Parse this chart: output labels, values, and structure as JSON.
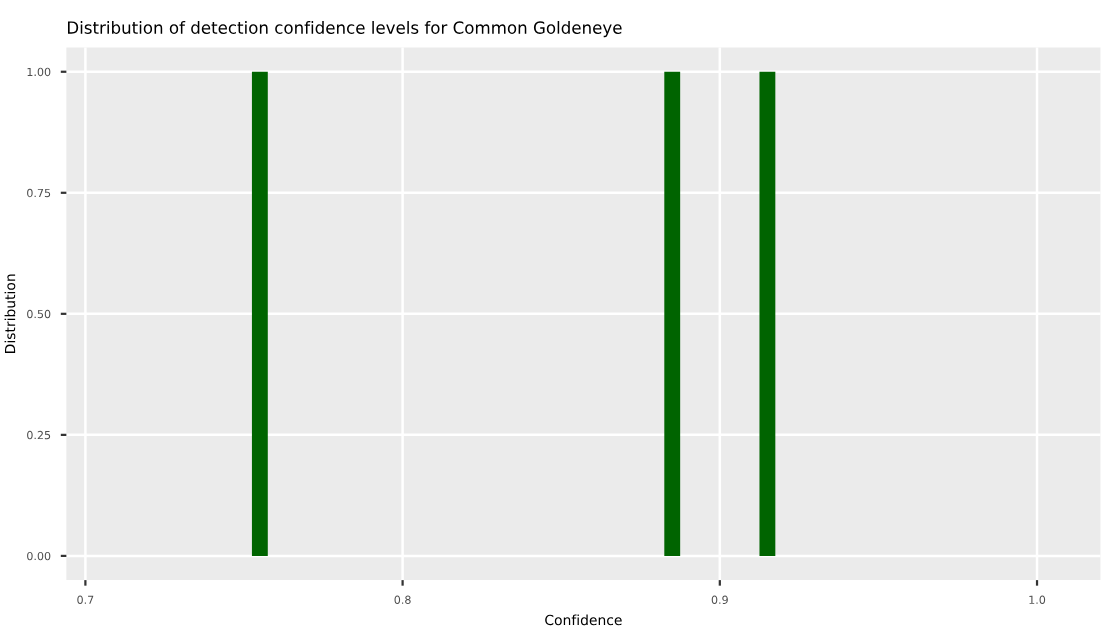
{
  "chart_data": {
    "type": "histogram",
    "title": "Distribution of detection confidence levels for Common Goldeneye",
    "xlabel": "Confidence",
    "ylabel": "Distribution",
    "bins": [
      0.7525,
      0.7575,
      0.8825,
      0.8875,
      0.9125,
      0.9175
    ],
    "values": [
      1,
      0,
      1,
      0,
      1
    ],
    "color": "#006400",
    "xlim": [
      0.694,
      1.02
    ],
    "xticks": [
      0.7,
      0.8,
      0.9,
      {
        "value": 1,
        "label": "1.0"
      }
    ],
    "ylim": [
      -0.05,
      1.05
    ],
    "yticks": [
      {
        "value": 0,
        "label": "0.00"
      },
      {
        "value": 0.25,
        "label": "0.25"
      },
      {
        "value": 0.5,
        "label": "0.50"
      },
      {
        "value": 0.75,
        "label": "0.75"
      },
      {
        "value": 1,
        "label": "1.00"
      }
    ],
    "grid": true
  }
}
